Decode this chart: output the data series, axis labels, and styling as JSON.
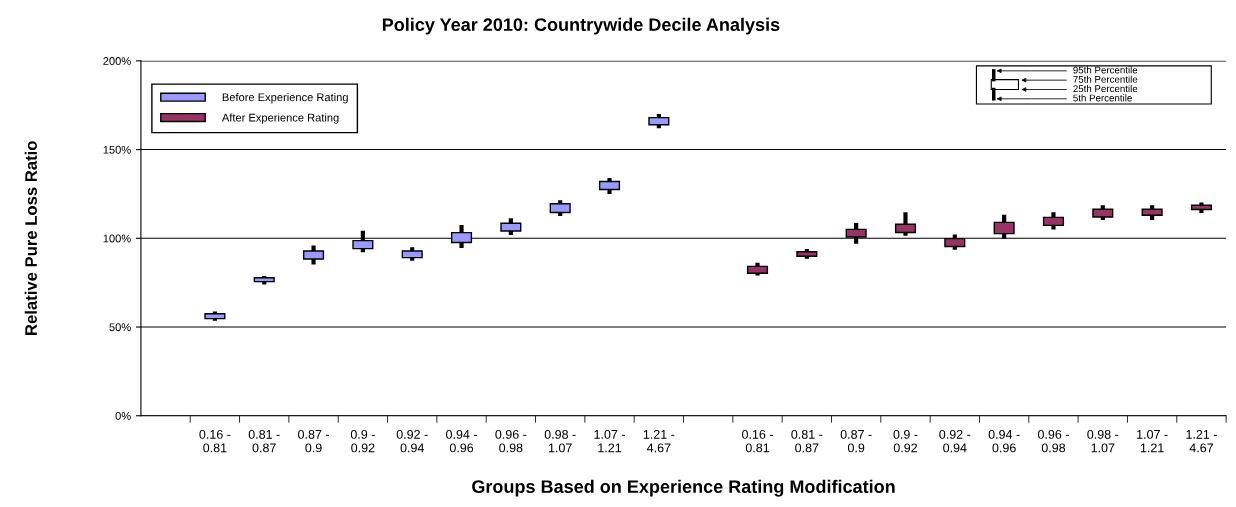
{
  "chart_data": {
    "type": "box",
    "title": "Policy Year 2010: Countrywide Decile Analysis",
    "xlabel": "Groups Based on Experience Rating Modification",
    "ylabel": "Relative Pure Loss Ratio",
    "categories": [
      null,
      "0.16 -\n0.81",
      "0.81 -\n0.87",
      "0.87 -\n0.9",
      "0.9 -\n0.92",
      "0.92 -\n0.94",
      "0.94 -\n0.96",
      "0.96 -\n0.98",
      "0.98 -\n1.07",
      "1.07 -\n1.21",
      "1.21 -\n4.67",
      null,
      "0.16 -\n0.81",
      "0.81 -\n0.87",
      "0.87 -\n0.9",
      "0.9 -\n0.92",
      "0.92 -\n0.94",
      "0.94 -\n0.96",
      "0.96 -\n0.98",
      "0.98 -\n1.07",
      "1.07 -\n1.21",
      "1.21 -\n4.67"
    ],
    "series": [
      {
        "name": "Before Experience Rating",
        "color": "#9999ff",
        "boxes": [
          null,
          {
            "low": 53.6,
            "q1": 54.7,
            "q3": 57.5,
            "high": 58.7
          },
          {
            "low": 73.9,
            "q1": 75.6,
            "q3": 77.8,
            "high": 78.7
          },
          {
            "low": 85.3,
            "q1": 88.3,
            "q3": 92.8,
            "high": 96
          },
          {
            "low": 92.1,
            "q1": 94.2,
            "q3": 98.7,
            "high": 104.3
          },
          {
            "low": 87.4,
            "q1": 89.1,
            "q3": 92.8,
            "high": 94.9
          },
          {
            "low": 94.5,
            "q1": 97.6,
            "q3": 103.2,
            "high": 107.5
          },
          {
            "low": 101.9,
            "q1": 104.1,
            "q3": 108.5,
            "high": 111.3
          },
          {
            "low": 112.5,
            "q1": 114.5,
            "q3": 119.5,
            "high": 121.5
          },
          {
            "low": 125,
            "q1": 127.5,
            "q3": 132,
            "high": 134
          },
          {
            "low": 162,
            "q1": 164,
            "q3": 168,
            "high": 170
          },
          null,
          null,
          null,
          null,
          null,
          null,
          null,
          null,
          null,
          null,
          null
        ]
      },
      {
        "name": "After Experience Rating",
        "color": "#993366",
        "boxes": [
          null,
          null,
          null,
          null,
          null,
          null,
          null,
          null,
          null,
          null,
          null,
          null,
          {
            "low": 79.1,
            "q1": 80.3,
            "q3": 84.2,
            "high": 86.2
          },
          {
            "low": 88.4,
            "q1": 89.9,
            "q3": 92.4,
            "high": 93.9
          },
          {
            "low": 96.9,
            "q1": 100.7,
            "q3": 105,
            "high": 108.6
          },
          {
            "low": 101.4,
            "q1": 103.3,
            "q3": 107.9,
            "high": 114.7
          },
          {
            "low": 93.5,
            "q1": 95.4,
            "q3": 99.8,
            "high": 102.2
          },
          {
            "low": 99.7,
            "q1": 102.6,
            "q3": 109,
            "high": 113.3
          },
          {
            "low": 105,
            "q1": 107.3,
            "q3": 111.8,
            "high": 114.7
          },
          {
            "low": 110.3,
            "q1": 112,
            "q3": 116.4,
            "high": 118.6
          },
          {
            "low": 110.3,
            "q1": 113,
            "q3": 116.4,
            "high": 118.6
          },
          {
            "low": 114.3,
            "q1": 116.2,
            "q3": 118.6,
            "high": 120.2
          }
        ]
      }
    ],
    "ylim": [
      0,
      200
    ],
    "yticks": [
      {
        "value": 0,
        "label": "0%"
      },
      {
        "value": 50,
        "label": "50%"
      },
      {
        "value": 100,
        "label": "100%"
      },
      {
        "value": 150,
        "label": "150%"
      },
      {
        "value": 200,
        "label": "200%"
      }
    ],
    "grid": "y",
    "legend": "top left",
    "annotations": [
      "95th Percentile",
      "75th Percentile",
      "25th Percentile",
      "5th Percentile"
    ]
  }
}
